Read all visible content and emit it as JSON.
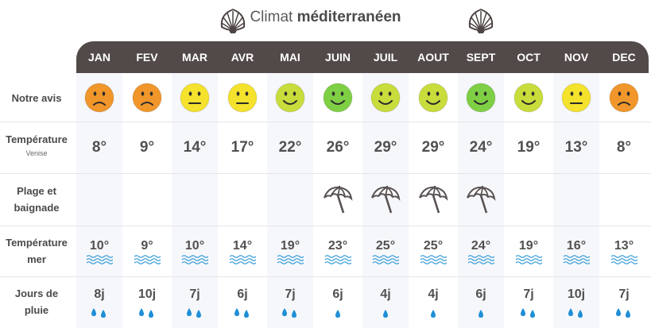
{
  "title": {
    "regular": "Climat ",
    "bold": "méditerranéen"
  },
  "row_labels": {
    "notre_avis": "Notre avis",
    "temperature": "Température",
    "temperature_sub": "Venise",
    "plage_line1": "Plage et",
    "plage_line2": "baignade",
    "mer_line1": "Température",
    "mer_line2": "mer",
    "pluie_line1": "Jours de",
    "pluie_line2": "pluie"
  },
  "months": [
    {
      "name": "JAN",
      "rating": "sad",
      "color": "#f0962a",
      "temp": "8°",
      "beach": false,
      "sea": "10°",
      "rain": "8j",
      "drops": 2
    },
    {
      "name": "FEV",
      "rating": "sad",
      "color": "#f0962a",
      "temp": "9°",
      "beach": false,
      "sea": "9°",
      "rain": "10j",
      "drops": 2
    },
    {
      "name": "MAR",
      "rating": "neutral",
      "color": "#f4e22c",
      "temp": "14°",
      "beach": false,
      "sea": "10°",
      "rain": "7j",
      "drops": 2
    },
    {
      "name": "AVR",
      "rating": "neutral",
      "color": "#f4e22c",
      "temp": "17°",
      "beach": false,
      "sea": "14°",
      "rain": "6j",
      "drops": 2
    },
    {
      "name": "MAI",
      "rating": "smile",
      "color": "#c8dd3c",
      "temp": "22°",
      "beach": false,
      "sea": "19°",
      "rain": "7j",
      "drops": 2
    },
    {
      "name": "JUIN",
      "rating": "smile",
      "color": "#7fcf45",
      "temp": "26°",
      "beach": true,
      "sea": "23°",
      "rain": "6j",
      "drops": 1
    },
    {
      "name": "JUIL",
      "rating": "smile",
      "color": "#c8dd3c",
      "temp": "29°",
      "beach": true,
      "sea": "25°",
      "rain": "4j",
      "drops": 1
    },
    {
      "name": "AOUT",
      "rating": "smile",
      "color": "#c8dd3c",
      "temp": "29°",
      "beach": true,
      "sea": "25°",
      "rain": "4j",
      "drops": 1
    },
    {
      "name": "SEPT",
      "rating": "smile",
      "color": "#7fcf45",
      "temp": "24°",
      "beach": true,
      "sea": "24°",
      "rain": "6j",
      "drops": 1
    },
    {
      "name": "OCT",
      "rating": "smile",
      "color": "#c8dd3c",
      "temp": "19°",
      "beach": false,
      "sea": "19°",
      "rain": "7j",
      "drops": 2
    },
    {
      "name": "NOV",
      "rating": "neutral",
      "color": "#f4e22c",
      "temp": "13°",
      "beach": false,
      "sea": "16°",
      "rain": "10j",
      "drops": 2
    },
    {
      "name": "DEC",
      "rating": "sad",
      "color": "#f0962a",
      "temp": "8°",
      "beach": false,
      "sea": "13°",
      "rain": "7j",
      "drops": 2
    }
  ],
  "colors": {
    "header_bg": "#524a49",
    "wave": "#3fa0d8",
    "drop": "#1f8fd6",
    "umbrella": "#5a5353"
  },
  "icons": {
    "shell": "scallop-shell-icon",
    "umbrella": "beach-umbrella-icon",
    "wave": "wave-icon",
    "drop": "rain-drop-icon"
  }
}
